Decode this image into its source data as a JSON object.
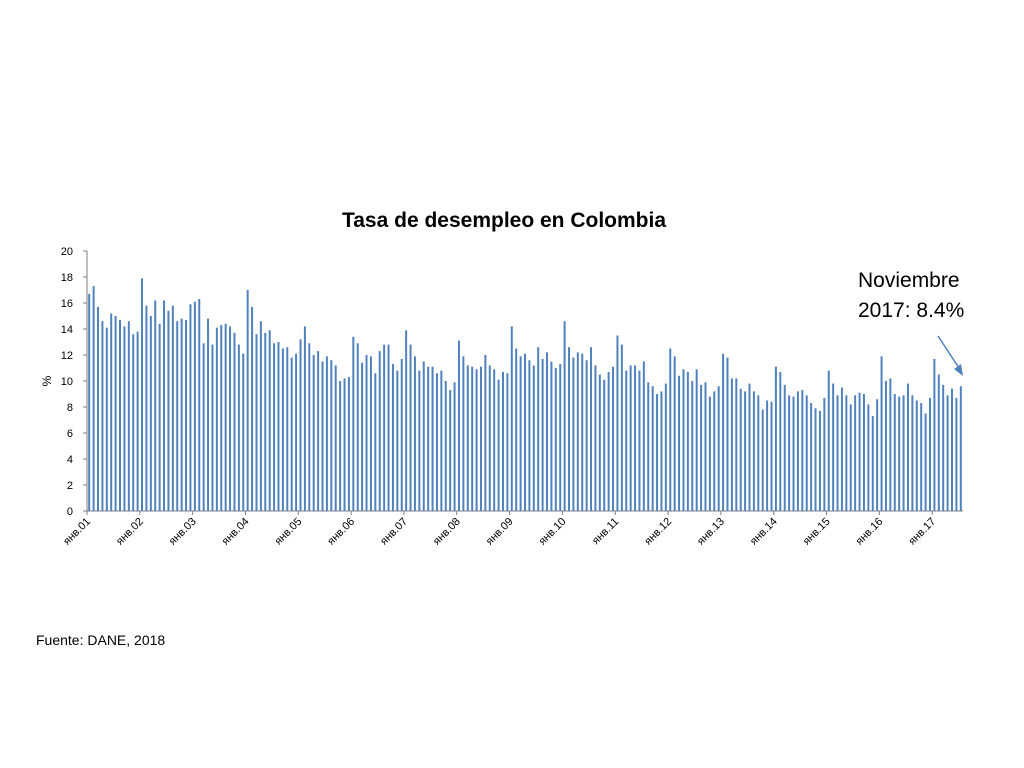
{
  "annotation": {
    "line1": "Noviembre",
    "line2": "2017: 8.4%"
  },
  "source": "Fuente: DANE, 2018",
  "colors": {
    "bar": "#4F81BD",
    "axis": "#7F7F7F",
    "arrow": "#4F81BD"
  },
  "chart_data": {
    "type": "bar",
    "title": "Tasa de desempleo en Colombia",
    "xlabel": "",
    "ylabel": "%",
    "ylim": [
      0,
      20
    ],
    "yticks": [
      0,
      2,
      4,
      6,
      8,
      10,
      12,
      14,
      16,
      18,
      20
    ],
    "xtick_labels": [
      "янв.01",
      "янв.02",
      "янв.03",
      "янв.04",
      "янв.05",
      "янв.06",
      "янв.07",
      "янв.08",
      "янв.09",
      "янв.10",
      "янв.11",
      "янв.12",
      "янв.13",
      "янв.14",
      "янв.15",
      "янв.16",
      "янв.17"
    ],
    "grid": false,
    "legend": "none",
    "series": [
      {
        "values": [
          16.7,
          17.3,
          15.7,
          14.6,
          14.1,
          15.2,
          15.0,
          14.7,
          14.2,
          14.6,
          13.6,
          13.8,
          17.9,
          15.8,
          15.0,
          16.2,
          14.4,
          16.2,
          15.4,
          15.8,
          14.6,
          14.8,
          14.7,
          15.9,
          16.1,
          16.3,
          12.9,
          14.8,
          12.8,
          14.1,
          14.3,
          14.4,
          14.2,
          13.7,
          12.8,
          12.1,
          17.0,
          15.7,
          13.6,
          14.6,
          13.7,
          13.9,
          12.9,
          13.0,
          12.5,
          12.6,
          11.8,
          12.1,
          13.2,
          14.2,
          12.9,
          12.0,
          12.3,
          11.5,
          11.9,
          11.6,
          11.2,
          10.0,
          10.2,
          10.3,
          13.4,
          12.9,
          11.4,
          12.0,
          11.9,
          10.6,
          12.3,
          12.8,
          12.8,
          11.3,
          10.8,
          11.7,
          13.9,
          12.8,
          11.9,
          10.8,
          11.5,
          11.1,
          11.1,
          10.6,
          10.8,
          10.0,
          9.3,
          9.9,
          13.1,
          11.9,
          11.2,
          11.1,
          10.9,
          11.1,
          12.0,
          11.2,
          10.9,
          10.1,
          10.7,
          10.6,
          14.2,
          12.5,
          11.9,
          12.1,
          11.6,
          11.2,
          12.6,
          11.7,
          12.2,
          11.5,
          11.0,
          11.3,
          14.6,
          12.6,
          11.8,
          12.2,
          12.1,
          11.6,
          12.6,
          11.2,
          10.5,
          10.1,
          10.7,
          11.1,
          13.5,
          12.8,
          10.8,
          11.2,
          11.2,
          10.8,
          11.5,
          9.9,
          9.6,
          9.0,
          9.2,
          9.8,
          12.5,
          11.9,
          10.4,
          10.9,
          10.7,
          10.0,
          10.9,
          9.7,
          9.9,
          8.8,
          9.2,
          9.6,
          12.1,
          11.8,
          10.2,
          10.2,
          9.4,
          9.2,
          9.8,
          9.2,
          8.9,
          7.8,
          8.5,
          8.4,
          11.1,
          10.7,
          9.7,
          8.9,
          8.8,
          9.2,
          9.3,
          8.9,
          8.3,
          7.9,
          7.7,
          8.7,
          10.8,
          9.8,
          8.9,
          9.5,
          8.9,
          8.2,
          8.9,
          9.1,
          9.0,
          8.2,
          7.3,
          8.6,
          11.9,
          10.0,
          10.2,
          9.0,
          8.8,
          8.9,
          9.8,
          8.9,
          8.5,
          8.3,
          7.5,
          8.7,
          11.7,
          10.5,
          9.7,
          8.9,
          9.4,
          8.7,
          9.6
        ]
      }
    ]
  }
}
